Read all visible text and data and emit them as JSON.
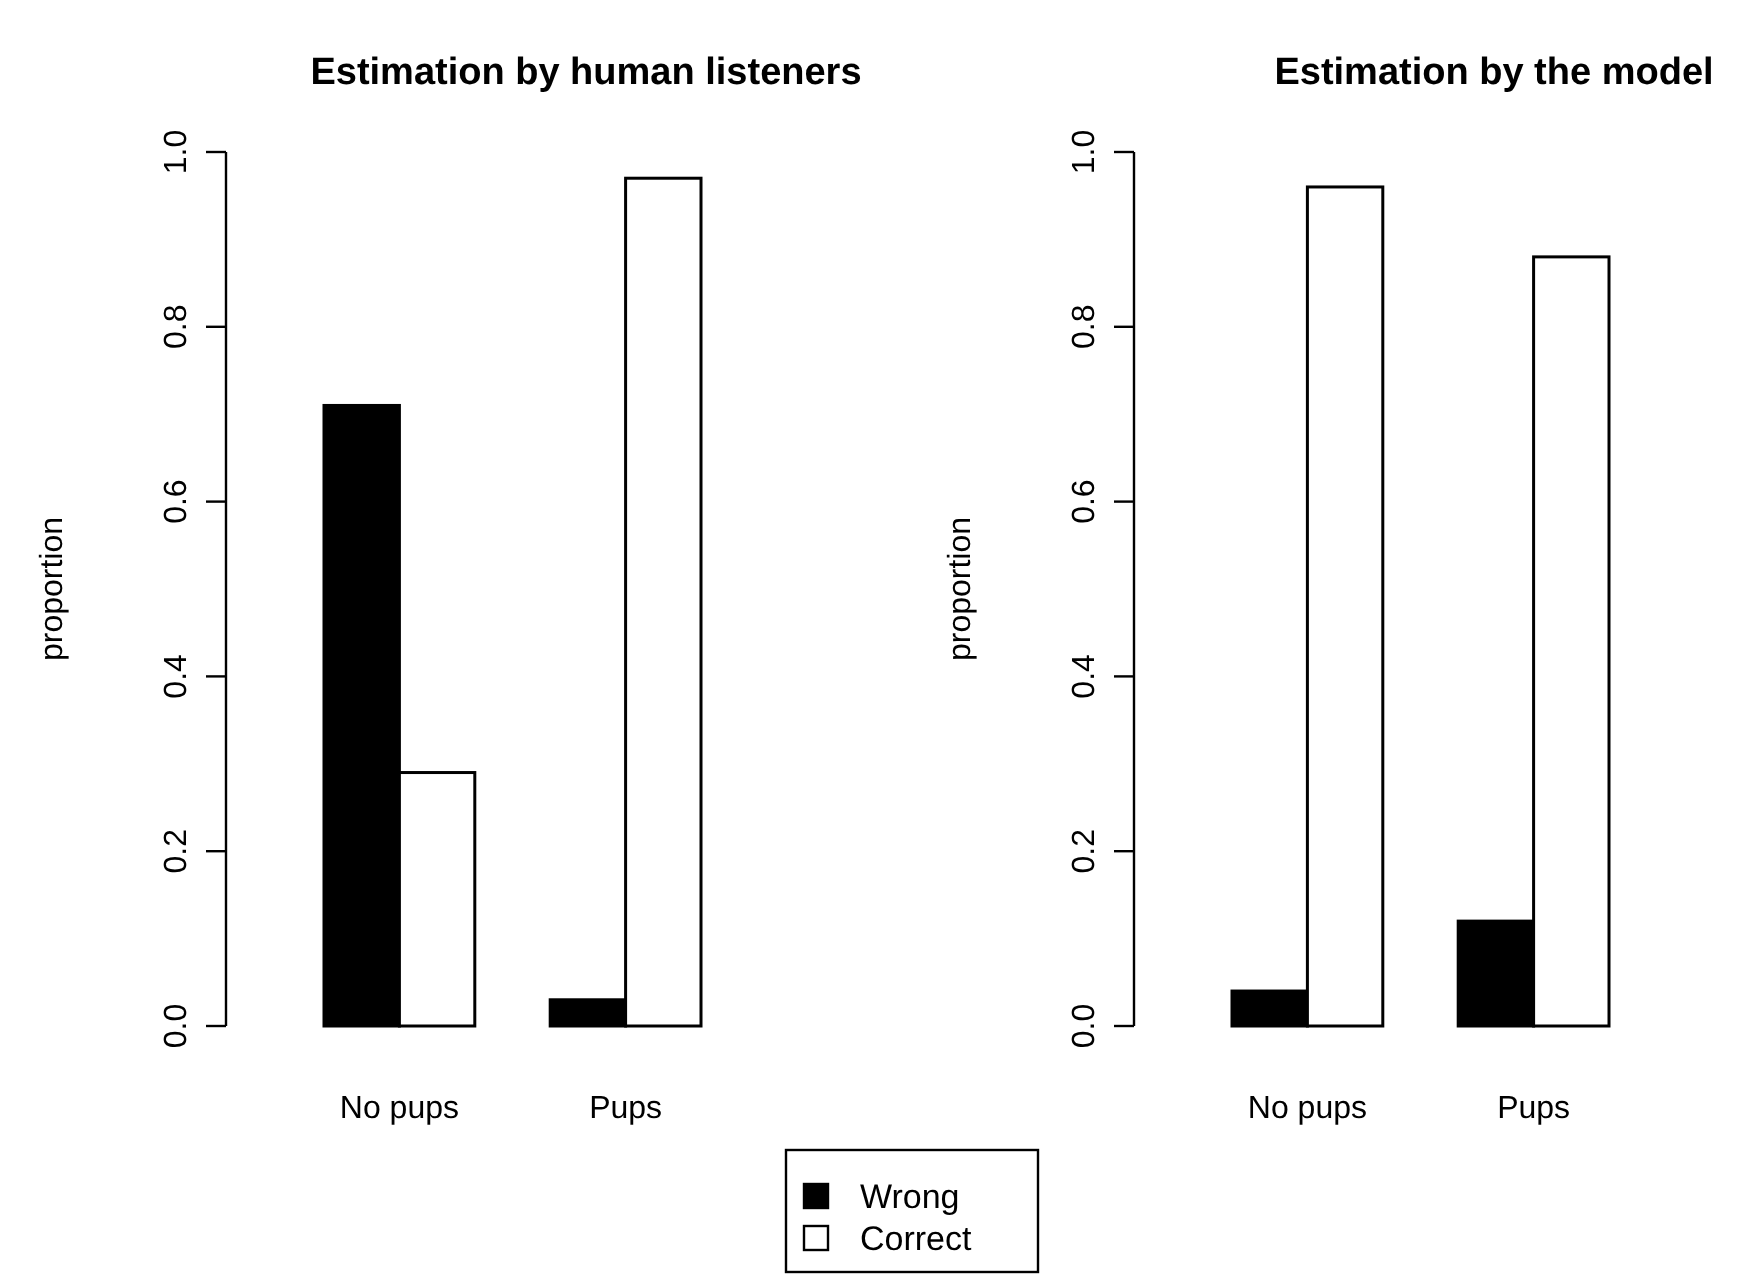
{
  "chart_data": [
    {
      "type": "bar",
      "title": "Estimation by human listeners",
      "ylabel": "proportion",
      "categories": [
        "No pups",
        "Pups"
      ],
      "series": [
        {
          "name": "Wrong",
          "color": "#000000",
          "values": [
            0.71,
            0.03
          ]
        },
        {
          "name": "Correct",
          "color": "#ffffff",
          "values": [
            0.29,
            0.97
          ]
        }
      ],
      "ylim": [
        0,
        1
      ],
      "yticks": [
        {
          "value": 0,
          "label": "0.0"
        },
        {
          "value": 0.2,
          "label": "0.2"
        },
        {
          "value": 0.4,
          "label": "0.4"
        },
        {
          "value": 0.6,
          "label": "0.6"
        },
        {
          "value": 0.8,
          "label": "0.8"
        },
        {
          "value": 1,
          "label": "1.0"
        }
      ],
      "legend": "bottom"
    },
    {
      "type": "bar",
      "title": "Estimation by the model",
      "ylabel": "proportion",
      "categories": [
        "No pups",
        "Pups"
      ],
      "series": [
        {
          "color": "#000000",
          "values": [
            0.04,
            0.12
          ]
        },
        {
          "color": "#ffffff",
          "values": [
            0.96,
            0.88
          ]
        }
      ],
      "ylim": [
        0,
        1
      ],
      "yticks": [
        {
          "value": 0,
          "label": "0.0"
        },
        {
          "value": 0.2,
          "label": "0.2"
        },
        {
          "value": 0.4,
          "label": "0.4"
        },
        {
          "value": 0.6,
          "label": "0.6"
        },
        {
          "value": 0.8,
          "label": "0.8"
        },
        {
          "value": 1,
          "label": "1.0"
        }
      ]
    }
  ]
}
